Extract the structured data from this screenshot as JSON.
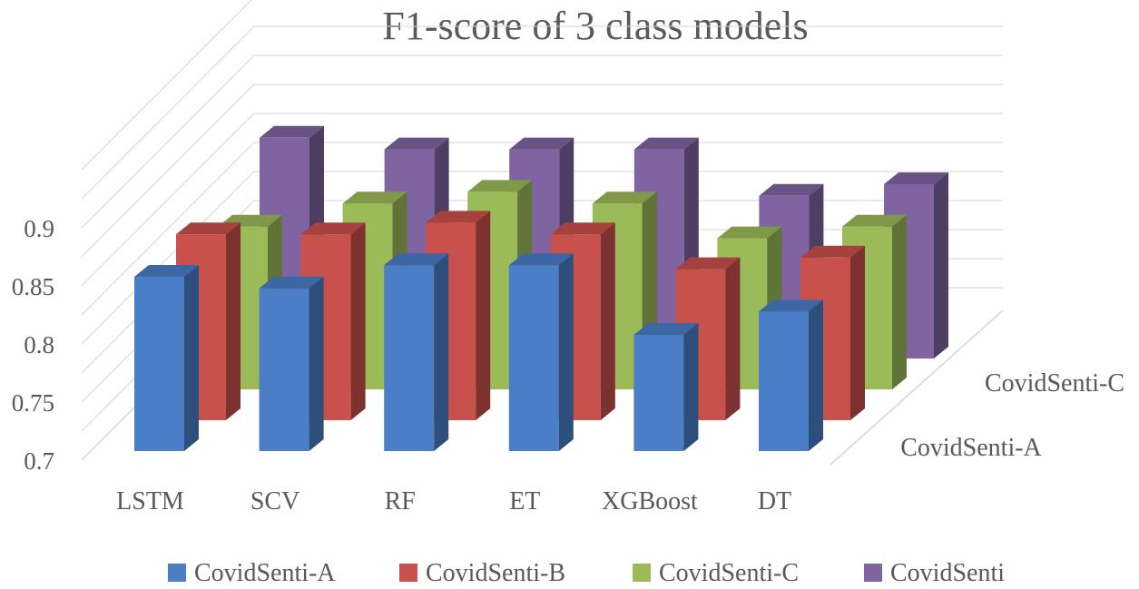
{
  "chart_data": {
    "type": "bar",
    "title": "F1-score of 3 class models",
    "categories": [
      "LSTM",
      "SCV",
      "RF",
      "ET",
      "XGBoost",
      "DT"
    ],
    "ylim": [
      0.7,
      0.9
    ],
    "y_ticks": [
      "0.7",
      "0.75",
      "0.8",
      "0.85",
      "0.9"
    ],
    "depth_labels": [
      "CovidSenti-A",
      "CovidSenti-C"
    ],
    "legend_position": "bottom",
    "series": [
      {
        "name": "CovidSenti-A",
        "color": "#4A7EC7",
        "values": [
          0.85,
          0.84,
          0.86,
          0.86,
          0.8,
          0.82
        ]
      },
      {
        "name": "CovidSenti-B",
        "color": "#C9514C",
        "values": [
          0.86,
          0.86,
          0.87,
          0.86,
          0.83,
          0.84
        ]
      },
      {
        "name": "CovidSenti-C",
        "color": "#9BBB59",
        "values": [
          0.84,
          0.86,
          0.87,
          0.86,
          0.83,
          0.84
        ]
      },
      {
        "name": "CovidSenti",
        "color": "#8064A2",
        "values": [
          0.89,
          0.88,
          0.88,
          0.88,
          0.84,
          0.85
        ]
      }
    ]
  }
}
